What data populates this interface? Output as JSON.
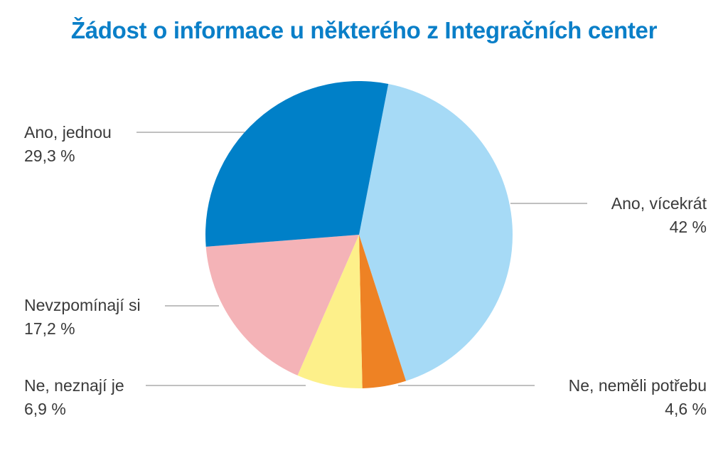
{
  "chart_data": {
    "type": "pie",
    "title": "Žádost o informace u některého z Integračních center",
    "slices": [
      {
        "label": "Ano, vícekrát",
        "value": 42,
        "value_label": "42 %",
        "color": "#a6daf6"
      },
      {
        "label": "Ne, neměli potřebu",
        "value": 4.6,
        "value_label": "4,6 %",
        "color": "#ee8224"
      },
      {
        "label": "Ne, neznají je",
        "value": 6.9,
        "value_label": "6,9 %",
        "color": "#fdf08a"
      },
      {
        "label": "Nevzpomínají si",
        "value": 17.2,
        "value_label": "17,2 %",
        "color": "#f4b3b7"
      },
      {
        "label": "Ano, jednou",
        "value": 29.3,
        "value_label": "29,3 %",
        "color": "#0080c8"
      }
    ],
    "start_angle_deg": 11,
    "direction": "clockwise",
    "leader_line_color": "#9a9a9a",
    "title_color": "#0a7fc8"
  }
}
